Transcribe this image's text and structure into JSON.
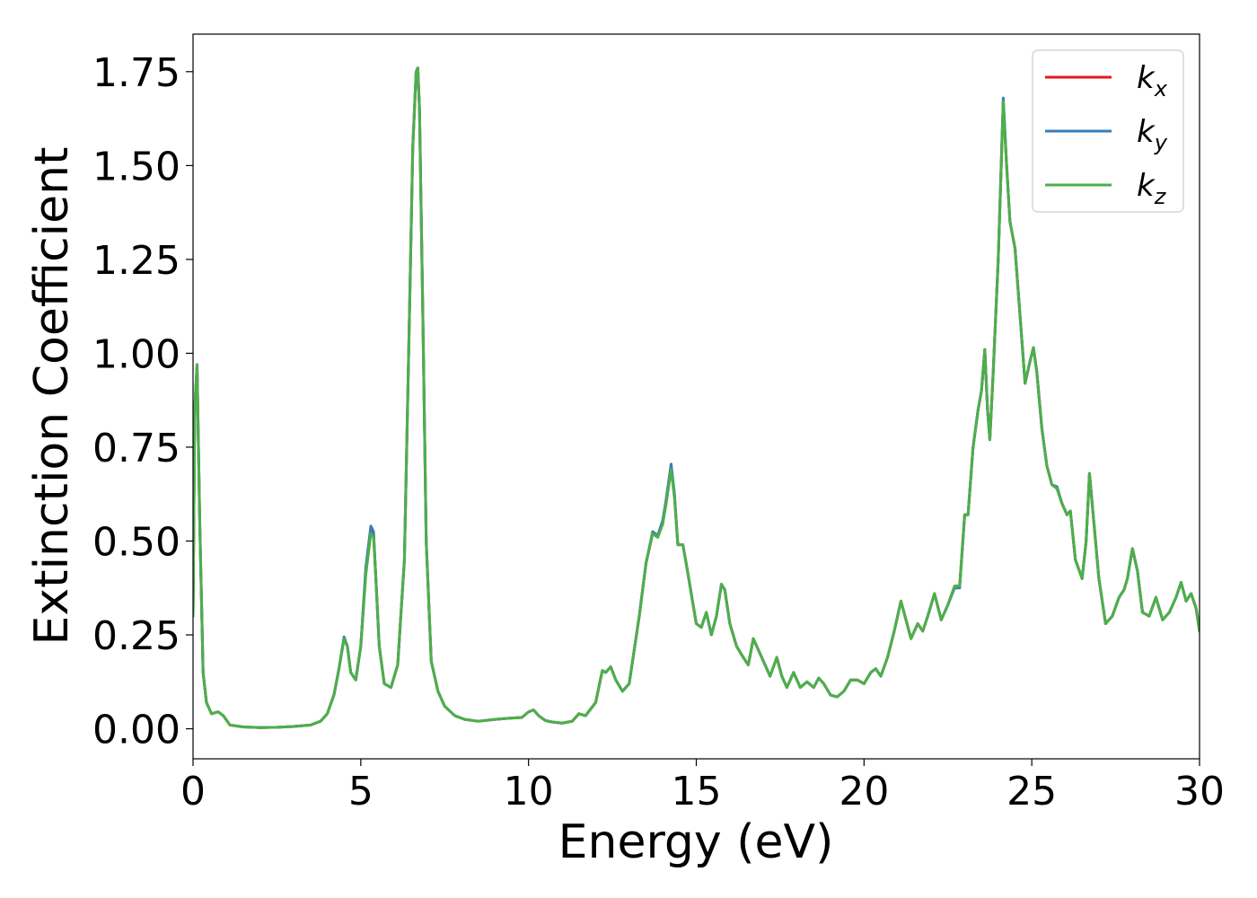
{
  "chart_data": {
    "type": "line",
    "title": "",
    "xlabel": "Energy (eV)",
    "ylabel": "Extinction Coefficient",
    "xlim": [
      0,
      30
    ],
    "ylim": [
      -0.08,
      1.85
    ],
    "xticks": [
      0,
      5,
      10,
      15,
      20,
      25,
      30
    ],
    "xtick_labels": [
      "0",
      "5",
      "10",
      "15",
      "20",
      "25",
      "30"
    ],
    "yticks": [
      0.0,
      0.25,
      0.5,
      0.75,
      1.0,
      1.25,
      1.5,
      1.75
    ],
    "ytick_labels": [
      "0.00",
      "0.25",
      "0.50",
      "0.75",
      "1.00",
      "1.25",
      "1.50",
      "1.75"
    ],
    "grid": false,
    "legend_position": "top-right",
    "series": [
      {
        "name": "kx",
        "label_main": "k",
        "label_sub": "x",
        "color": "#e41a1c",
        "x": [
          0.0,
          0.05,
          0.12,
          0.2,
          0.3,
          0.4,
          0.55,
          0.75,
          0.9,
          1.1,
          1.5,
          2.0,
          2.5,
          3.0,
          3.5,
          3.8,
          4.0,
          4.2,
          4.35,
          4.5,
          4.6,
          4.7,
          4.85,
          5.0,
          5.15,
          5.3,
          5.38,
          5.45,
          5.55,
          5.7,
          5.9,
          6.1,
          6.3,
          6.45,
          6.55,
          6.65,
          6.7,
          6.75,
          6.85,
          6.95,
          7.1,
          7.3,
          7.5,
          7.8,
          8.1,
          8.5,
          9.0,
          9.4,
          9.8,
          10.0,
          10.15,
          10.3,
          10.5,
          10.7,
          11.0,
          11.3,
          11.5,
          11.7,
          12.0,
          12.2,
          12.3,
          12.45,
          12.6,
          12.8,
          13.0,
          13.3,
          13.5,
          13.7,
          13.85,
          14.0,
          14.1,
          14.25,
          14.35,
          14.45,
          14.6,
          14.7,
          14.85,
          15.0,
          15.15,
          15.3,
          15.45,
          15.6,
          15.75,
          15.85,
          16.0,
          16.2,
          16.4,
          16.55,
          16.7,
          16.85,
          17.0,
          17.2,
          17.4,
          17.55,
          17.7,
          17.9,
          18.1,
          18.3,
          18.5,
          18.65,
          18.8,
          19.0,
          19.2,
          19.4,
          19.6,
          19.8,
          20.0,
          20.2,
          20.35,
          20.5,
          20.7,
          20.9,
          21.1,
          21.25,
          21.4,
          21.6,
          21.75,
          21.9,
          22.1,
          22.3,
          22.5,
          22.7,
          22.85,
          23.0,
          23.1,
          23.25,
          23.4,
          23.5,
          23.6,
          23.68,
          23.75,
          23.85,
          24.0,
          24.15,
          24.25,
          24.35,
          24.5,
          24.65,
          24.8,
          24.95,
          25.05,
          25.15,
          25.3,
          25.45,
          25.6,
          25.75,
          25.9,
          26.05,
          26.15,
          26.3,
          26.5,
          26.62,
          26.72,
          26.85,
          27.0,
          27.2,
          27.4,
          27.6,
          27.75,
          27.85,
          28.0,
          28.15,
          28.3,
          28.5,
          28.7,
          28.9,
          29.1,
          29.3,
          29.45,
          29.6,
          29.75,
          29.9,
          30.0
        ],
        "y": [
          0.3,
          0.85,
          0.97,
          0.55,
          0.15,
          0.07,
          0.04,
          0.045,
          0.035,
          0.01,
          0.005,
          0.003,
          0.004,
          0.006,
          0.01,
          0.02,
          0.04,
          0.09,
          0.16,
          0.24,
          0.22,
          0.15,
          0.13,
          0.22,
          0.42,
          0.535,
          0.52,
          0.4,
          0.22,
          0.12,
          0.11,
          0.17,
          0.45,
          1.1,
          1.55,
          1.75,
          1.76,
          1.65,
          1.1,
          0.5,
          0.18,
          0.1,
          0.06,
          0.035,
          0.025,
          0.02,
          0.025,
          0.028,
          0.03,
          0.045,
          0.05,
          0.035,
          0.022,
          0.018,
          0.015,
          0.02,
          0.04,
          0.035,
          0.07,
          0.155,
          0.15,
          0.165,
          0.13,
          0.1,
          0.12,
          0.3,
          0.44,
          0.52,
          0.51,
          0.55,
          0.6,
          0.7,
          0.62,
          0.49,
          0.49,
          0.44,
          0.36,
          0.28,
          0.27,
          0.31,
          0.25,
          0.3,
          0.385,
          0.37,
          0.28,
          0.22,
          0.19,
          0.17,
          0.24,
          0.21,
          0.18,
          0.14,
          0.19,
          0.14,
          0.11,
          0.15,
          0.11,
          0.125,
          0.11,
          0.135,
          0.12,
          0.09,
          0.085,
          0.1,
          0.13,
          0.13,
          0.12,
          0.15,
          0.16,
          0.14,
          0.19,
          0.26,
          0.34,
          0.29,
          0.24,
          0.28,
          0.26,
          0.3,
          0.36,
          0.29,
          0.33,
          0.38,
          0.38,
          0.57,
          0.57,
          0.75,
          0.85,
          0.9,
          1.01,
          0.85,
          0.77,
          0.95,
          1.25,
          1.67,
          1.5,
          1.35,
          1.28,
          1.1,
          0.92,
          0.98,
          1.015,
          0.95,
          0.8,
          0.7,
          0.65,
          0.64,
          0.6,
          0.57,
          0.58,
          0.45,
          0.4,
          0.5,
          0.68,
          0.55,
          0.4,
          0.28,
          0.3,
          0.35,
          0.37,
          0.4,
          0.48,
          0.42,
          0.31,
          0.3,
          0.35,
          0.29,
          0.31,
          0.35,
          0.39,
          0.34,
          0.36,
          0.32,
          0.26
        ]
      },
      {
        "name": "ky",
        "label_main": "k",
        "label_sub": "y",
        "color": "#377eb8",
        "x": [
          0.0,
          0.05,
          0.12,
          0.2,
          0.3,
          0.4,
          0.55,
          0.75,
          0.9,
          1.1,
          1.5,
          2.0,
          2.5,
          3.0,
          3.5,
          3.8,
          4.0,
          4.2,
          4.35,
          4.5,
          4.6,
          4.7,
          4.85,
          5.0,
          5.15,
          5.3,
          5.38,
          5.45,
          5.55,
          5.7,
          5.9,
          6.1,
          6.3,
          6.45,
          6.55,
          6.65,
          6.7,
          6.75,
          6.85,
          6.95,
          7.1,
          7.3,
          7.5,
          7.8,
          8.1,
          8.5,
          9.0,
          9.4,
          9.8,
          10.0,
          10.15,
          10.3,
          10.5,
          10.7,
          11.0,
          11.3,
          11.5,
          11.7,
          12.0,
          12.2,
          12.3,
          12.45,
          12.6,
          12.8,
          13.0,
          13.3,
          13.5,
          13.7,
          13.85,
          14.0,
          14.1,
          14.25,
          14.35,
          14.45,
          14.6,
          14.7,
          14.85,
          15.0,
          15.15,
          15.3,
          15.45,
          15.6,
          15.75,
          15.85,
          16.0,
          16.2,
          16.4,
          16.55,
          16.7,
          16.85,
          17.0,
          17.2,
          17.4,
          17.55,
          17.7,
          17.9,
          18.1,
          18.3,
          18.5,
          18.65,
          18.8,
          19.0,
          19.2,
          19.4,
          19.6,
          19.8,
          20.0,
          20.2,
          20.35,
          20.5,
          20.7,
          20.9,
          21.1,
          21.25,
          21.4,
          21.6,
          21.75,
          21.9,
          22.1,
          22.3,
          22.5,
          22.7,
          22.85,
          23.0,
          23.1,
          23.25,
          23.4,
          23.5,
          23.6,
          23.68,
          23.75,
          23.85,
          24.0,
          24.15,
          24.25,
          24.35,
          24.5,
          24.65,
          24.8,
          24.95,
          25.05,
          25.15,
          25.3,
          25.45,
          25.6,
          25.75,
          25.9,
          26.05,
          26.15,
          26.3,
          26.5,
          26.62,
          26.72,
          26.85,
          27.0,
          27.2,
          27.4,
          27.6,
          27.75,
          27.85,
          28.0,
          28.15,
          28.3,
          28.5,
          28.7,
          28.9,
          29.1,
          29.3,
          29.45,
          29.6,
          29.75,
          29.9,
          30.0
        ],
        "y": [
          0.3,
          0.85,
          0.97,
          0.55,
          0.15,
          0.07,
          0.04,
          0.045,
          0.035,
          0.01,
          0.005,
          0.003,
          0.004,
          0.006,
          0.01,
          0.02,
          0.04,
          0.09,
          0.16,
          0.245,
          0.22,
          0.15,
          0.13,
          0.22,
          0.43,
          0.54,
          0.525,
          0.4,
          0.22,
          0.12,
          0.11,
          0.17,
          0.45,
          1.1,
          1.55,
          1.75,
          1.76,
          1.65,
          1.1,
          0.5,
          0.18,
          0.1,
          0.06,
          0.035,
          0.025,
          0.02,
          0.025,
          0.028,
          0.03,
          0.045,
          0.05,
          0.035,
          0.022,
          0.018,
          0.015,
          0.02,
          0.04,
          0.035,
          0.07,
          0.155,
          0.15,
          0.165,
          0.13,
          0.1,
          0.12,
          0.3,
          0.44,
          0.525,
          0.515,
          0.555,
          0.61,
          0.705,
          0.625,
          0.49,
          0.49,
          0.44,
          0.36,
          0.28,
          0.27,
          0.31,
          0.25,
          0.3,
          0.385,
          0.37,
          0.28,
          0.22,
          0.19,
          0.17,
          0.24,
          0.21,
          0.18,
          0.14,
          0.19,
          0.14,
          0.11,
          0.15,
          0.11,
          0.125,
          0.11,
          0.135,
          0.12,
          0.09,
          0.085,
          0.1,
          0.13,
          0.13,
          0.12,
          0.15,
          0.16,
          0.14,
          0.19,
          0.26,
          0.34,
          0.29,
          0.24,
          0.28,
          0.26,
          0.3,
          0.36,
          0.29,
          0.33,
          0.375,
          0.375,
          0.57,
          0.57,
          0.75,
          0.85,
          0.9,
          1.01,
          0.85,
          0.77,
          0.95,
          1.25,
          1.68,
          1.5,
          1.35,
          1.28,
          1.1,
          0.92,
          0.98,
          1.015,
          0.95,
          0.8,
          0.7,
          0.65,
          0.645,
          0.6,
          0.57,
          0.58,
          0.45,
          0.4,
          0.5,
          0.68,
          0.55,
          0.4,
          0.28,
          0.3,
          0.35,
          0.37,
          0.4,
          0.48,
          0.42,
          0.31,
          0.3,
          0.35,
          0.29,
          0.31,
          0.35,
          0.39,
          0.34,
          0.36,
          0.32,
          0.26
        ]
      },
      {
        "name": "kz",
        "label_main": "k",
        "label_sub": "z",
        "color": "#4daf4a",
        "x": [
          0.0,
          0.05,
          0.12,
          0.2,
          0.3,
          0.4,
          0.55,
          0.75,
          0.9,
          1.1,
          1.5,
          2.0,
          2.5,
          3.0,
          3.5,
          3.8,
          4.0,
          4.2,
          4.35,
          4.5,
          4.6,
          4.7,
          4.85,
          5.0,
          5.15,
          5.3,
          5.38,
          5.45,
          5.55,
          5.7,
          5.9,
          6.1,
          6.3,
          6.45,
          6.55,
          6.65,
          6.7,
          6.75,
          6.85,
          6.95,
          7.1,
          7.3,
          7.5,
          7.8,
          8.1,
          8.5,
          9.0,
          9.4,
          9.8,
          10.0,
          10.15,
          10.3,
          10.5,
          10.7,
          11.0,
          11.3,
          11.5,
          11.7,
          12.0,
          12.2,
          12.3,
          12.45,
          12.6,
          12.8,
          13.0,
          13.3,
          13.5,
          13.7,
          13.85,
          14.0,
          14.1,
          14.25,
          14.35,
          14.45,
          14.6,
          14.7,
          14.85,
          15.0,
          15.15,
          15.3,
          15.45,
          15.6,
          15.75,
          15.85,
          16.0,
          16.2,
          16.4,
          16.55,
          16.7,
          16.85,
          17.0,
          17.2,
          17.4,
          17.55,
          17.7,
          17.9,
          18.1,
          18.3,
          18.5,
          18.65,
          18.8,
          19.0,
          19.2,
          19.4,
          19.6,
          19.8,
          20.0,
          20.2,
          20.35,
          20.5,
          20.7,
          20.9,
          21.1,
          21.25,
          21.4,
          21.6,
          21.75,
          21.9,
          22.1,
          22.3,
          22.5,
          22.7,
          22.85,
          23.0,
          23.1,
          23.25,
          23.4,
          23.5,
          23.6,
          23.68,
          23.75,
          23.85,
          24.0,
          24.15,
          24.25,
          24.35,
          24.5,
          24.65,
          24.8,
          24.95,
          25.05,
          25.15,
          25.3,
          25.45,
          25.6,
          25.75,
          25.9,
          26.05,
          26.15,
          26.3,
          26.5,
          26.62,
          26.72,
          26.85,
          27.0,
          27.2,
          27.4,
          27.6,
          27.75,
          27.85,
          28.0,
          28.15,
          28.3,
          28.5,
          28.7,
          28.9,
          29.1,
          29.3,
          29.45,
          29.6,
          29.75,
          29.9,
          30.0
        ],
        "y": [
          0.3,
          0.85,
          0.97,
          0.55,
          0.15,
          0.07,
          0.04,
          0.045,
          0.035,
          0.01,
          0.005,
          0.003,
          0.004,
          0.006,
          0.01,
          0.02,
          0.04,
          0.09,
          0.16,
          0.24,
          0.22,
          0.15,
          0.13,
          0.22,
          0.41,
          0.52,
          0.51,
          0.4,
          0.22,
          0.12,
          0.11,
          0.17,
          0.45,
          1.1,
          1.55,
          1.75,
          1.76,
          1.65,
          1.1,
          0.5,
          0.18,
          0.1,
          0.06,
          0.035,
          0.025,
          0.02,
          0.025,
          0.028,
          0.03,
          0.045,
          0.05,
          0.035,
          0.022,
          0.018,
          0.015,
          0.02,
          0.04,
          0.035,
          0.07,
          0.155,
          0.15,
          0.165,
          0.13,
          0.1,
          0.12,
          0.3,
          0.44,
          0.52,
          0.51,
          0.545,
          0.6,
          0.69,
          0.615,
          0.49,
          0.49,
          0.44,
          0.36,
          0.28,
          0.27,
          0.31,
          0.25,
          0.3,
          0.385,
          0.37,
          0.28,
          0.22,
          0.19,
          0.17,
          0.24,
          0.21,
          0.18,
          0.14,
          0.19,
          0.14,
          0.11,
          0.15,
          0.11,
          0.125,
          0.11,
          0.135,
          0.12,
          0.09,
          0.085,
          0.1,
          0.13,
          0.13,
          0.12,
          0.15,
          0.16,
          0.14,
          0.19,
          0.26,
          0.34,
          0.29,
          0.24,
          0.28,
          0.26,
          0.3,
          0.36,
          0.29,
          0.33,
          0.38,
          0.38,
          0.57,
          0.57,
          0.75,
          0.85,
          0.9,
          1.01,
          0.85,
          0.77,
          0.95,
          1.25,
          1.67,
          1.5,
          1.35,
          1.28,
          1.1,
          0.92,
          0.98,
          1.015,
          0.95,
          0.8,
          0.7,
          0.65,
          0.64,
          0.6,
          0.57,
          0.58,
          0.45,
          0.4,
          0.5,
          0.68,
          0.55,
          0.4,
          0.28,
          0.3,
          0.35,
          0.37,
          0.4,
          0.48,
          0.42,
          0.31,
          0.3,
          0.35,
          0.29,
          0.31,
          0.35,
          0.39,
          0.34,
          0.36,
          0.32,
          0.26
        ]
      }
    ]
  }
}
